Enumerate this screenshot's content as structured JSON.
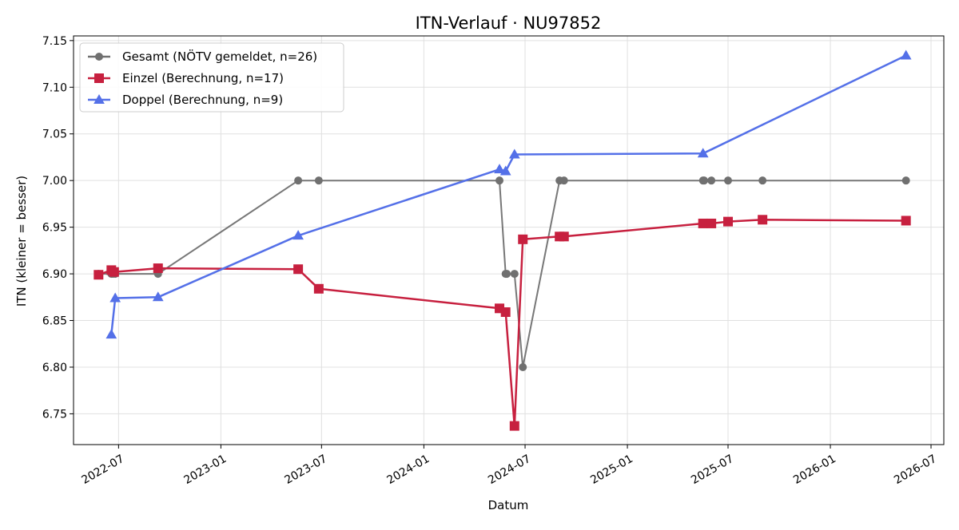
{
  "chart_data": {
    "type": "line",
    "title": "ITN-Verlauf · NU97852",
    "xlabel": "Datum",
    "ylabel": "ITN  (kleiner = besser)",
    "xlim": [
      "2022-04-11",
      "2026-07-24"
    ],
    "ylim": [
      6.717,
      7.155
    ],
    "xticks": [
      {
        "date": "2022-07-01",
        "label": "2022-07"
      },
      {
        "date": "2023-01-01",
        "label": "2023-01"
      },
      {
        "date": "2023-07-01",
        "label": "2023-07"
      },
      {
        "date": "2024-01-01",
        "label": "2024-01"
      },
      {
        "date": "2024-07-01",
        "label": "2024-07"
      },
      {
        "date": "2025-01-01",
        "label": "2025-01"
      },
      {
        "date": "2025-07-01",
        "label": "2025-07"
      },
      {
        "date": "2026-01-01",
        "label": "2026-01"
      },
      {
        "date": "2026-07-01",
        "label": "2026-07"
      }
    ],
    "yticks": [
      {
        "value": 6.75,
        "label": "6.75"
      },
      {
        "value": 6.8,
        "label": "6.80"
      },
      {
        "value": 6.85,
        "label": "6.85"
      },
      {
        "value": 6.9,
        "label": "6.90"
      },
      {
        "value": 6.95,
        "label": "6.95"
      },
      {
        "value": 7.0,
        "label": "7.00"
      },
      {
        "value": 7.05,
        "label": "7.05"
      },
      {
        "value": 7.1,
        "label": "7.10"
      },
      {
        "value": 7.15,
        "label": "7.15"
      }
    ],
    "grid": true,
    "legend_position": "top-left",
    "series": [
      {
        "name": "Gesamt (NÖTV gemeldet, n=26)",
        "color": "#707070",
        "marker": "circle",
        "points": [
          {
            "x": "2022-05-26",
            "y": 6.9
          },
          {
            "x": "2022-06-18",
            "y": 6.9
          },
          {
            "x": "2022-06-21",
            "y": 6.9
          },
          {
            "x": "2022-06-25",
            "y": 6.9
          },
          {
            "x": "2022-09-10",
            "y": 6.9
          },
          {
            "x": "2023-05-20",
            "y": 7.0
          },
          {
            "x": "2023-06-26",
            "y": 7.0
          },
          {
            "x": "2024-05-16",
            "y": 7.0
          },
          {
            "x": "2024-05-27",
            "y": 6.9
          },
          {
            "x": "2024-05-29",
            "y": 6.9
          },
          {
            "x": "2024-06-12",
            "y": 6.9
          },
          {
            "x": "2024-06-27",
            "y": 6.8
          },
          {
            "x": "2024-09-01",
            "y": 7.0
          },
          {
            "x": "2024-09-09",
            "y": 7.0
          },
          {
            "x": "2025-05-17",
            "y": 7.0
          },
          {
            "x": "2025-05-19",
            "y": 7.0
          },
          {
            "x": "2025-06-01",
            "y": 7.0
          },
          {
            "x": "2025-07-01",
            "y": 7.0
          },
          {
            "x": "2025-09-01",
            "y": 7.0
          },
          {
            "x": "2026-05-17",
            "y": 7.0
          }
        ]
      },
      {
        "name": "Einzel (Berechnung, n=17)",
        "color": "#c7203f",
        "marker": "square",
        "points": [
          {
            "x": "2022-05-26",
            "y": 6.899
          },
          {
            "x": "2022-06-18",
            "y": 6.904
          },
          {
            "x": "2022-06-23",
            "y": 6.902
          },
          {
            "x": "2022-09-10",
            "y": 6.906
          },
          {
            "x": "2023-05-20",
            "y": 6.905
          },
          {
            "x": "2023-06-26",
            "y": 6.884
          },
          {
            "x": "2024-05-16",
            "y": 6.863
          },
          {
            "x": "2024-05-27",
            "y": 6.859
          },
          {
            "x": "2024-06-12",
            "y": 6.737
          },
          {
            "x": "2024-06-27",
            "y": 6.937
          },
          {
            "x": "2024-09-01",
            "y": 6.94
          },
          {
            "x": "2024-09-09",
            "y": 6.94
          },
          {
            "x": "2025-05-17",
            "y": 6.954
          },
          {
            "x": "2025-06-01",
            "y": 6.954
          },
          {
            "x": "2025-07-01",
            "y": 6.956
          },
          {
            "x": "2025-09-01",
            "y": 6.958
          },
          {
            "x": "2026-05-17",
            "y": 6.957
          }
        ]
      },
      {
        "name": "Doppel (Berechnung, n=9)",
        "color": "#5470e8",
        "marker": "triangle",
        "points": [
          {
            "x": "2022-06-18",
            "y": 6.835
          },
          {
            "x": "2022-06-25",
            "y": 6.874
          },
          {
            "x": "2022-09-10",
            "y": 6.875
          },
          {
            "x": "2023-05-20",
            "y": 6.941
          },
          {
            "x": "2024-05-16",
            "y": 7.012
          },
          {
            "x": "2024-05-27",
            "y": 7.01
          },
          {
            "x": "2024-06-12",
            "y": 7.028
          },
          {
            "x": "2025-05-17",
            "y": 7.029
          },
          {
            "x": "2026-05-17",
            "y": 7.134
          }
        ]
      }
    ]
  }
}
